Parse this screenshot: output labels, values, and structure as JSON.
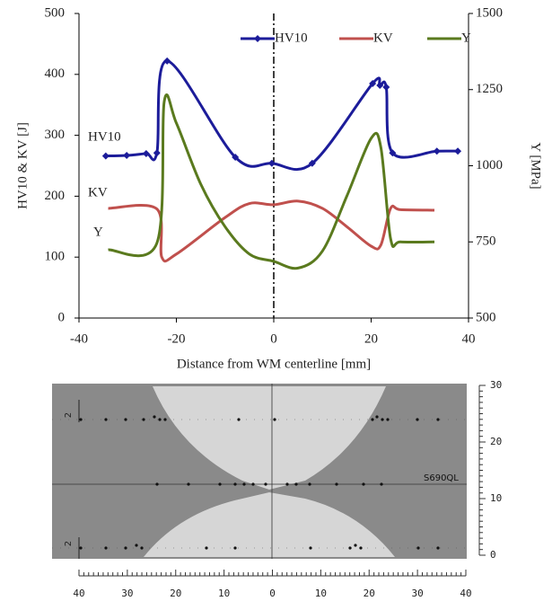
{
  "chart_data": {
    "type": "line",
    "x_label": "Distance from WM centerline [mm]",
    "y_label": "HV10 &  KV [J]",
    "y2_label": "Y [MPa]",
    "xlim": [
      -40,
      40
    ],
    "xticks": [
      -40,
      -20,
      0,
      20,
      40
    ],
    "ylim": [
      0,
      500
    ],
    "yticks": [
      0,
      100,
      200,
      300,
      400,
      500
    ],
    "y2lim": [
      500,
      1500
    ],
    "y2ticks": [
      500,
      750,
      1000,
      1250,
      1500
    ],
    "legend": "top-right",
    "annotations": [
      "HV10",
      "KV",
      "Y"
    ],
    "series": [
      {
        "name": "HV10",
        "color": "#1c1c9a",
        "markers": true,
        "x": [
          -34.5,
          -30.2,
          -26.2,
          -24,
          -21.9,
          -7.9,
          -0.4,
          7.9,
          20.3,
          21.8,
          23.1,
          24.4,
          33.5,
          37.8
        ],
        "values": [
          266,
          267,
          270,
          271,
          422,
          264,
          254,
          254,
          385,
          382,
          379,
          271,
          274,
          274
        ]
      },
      {
        "name": "KV",
        "color": "#c0504d",
        "markers": false,
        "x": [
          -34,
          -24,
          -23,
          -20,
          -10,
          -5,
          0,
          5,
          10,
          15,
          20,
          22,
          24,
          26,
          33
        ],
        "values": [
          180,
          179,
          100,
          105,
          165,
          188,
          186,
          192,
          180,
          150,
          118,
          120,
          180,
          178,
          177
        ]
      },
      {
        "name": "Y",
        "color": "#5a7a1e",
        "markers": false,
        "axis": "y2",
        "x": [
          -34,
          -24,
          -22.5,
          -20,
          -15,
          -10,
          -5,
          0,
          5,
          10,
          15,
          20,
          22,
          24,
          26,
          33
        ],
        "values": [
          724,
          746,
          1210,
          1140,
          940,
          800,
          710,
          686,
          664,
          720,
          900,
          1090,
          1060,
          760,
          750,
          750
        ]
      }
    ]
  },
  "macrograph": {
    "label": "S690QL",
    "side_marks": [
      "2",
      "2"
    ],
    "x_scale": [
      40,
      30,
      20,
      10,
      0,
      10,
      20,
      30,
      40
    ],
    "y_scale": [
      30,
      20,
      10,
      0
    ]
  }
}
